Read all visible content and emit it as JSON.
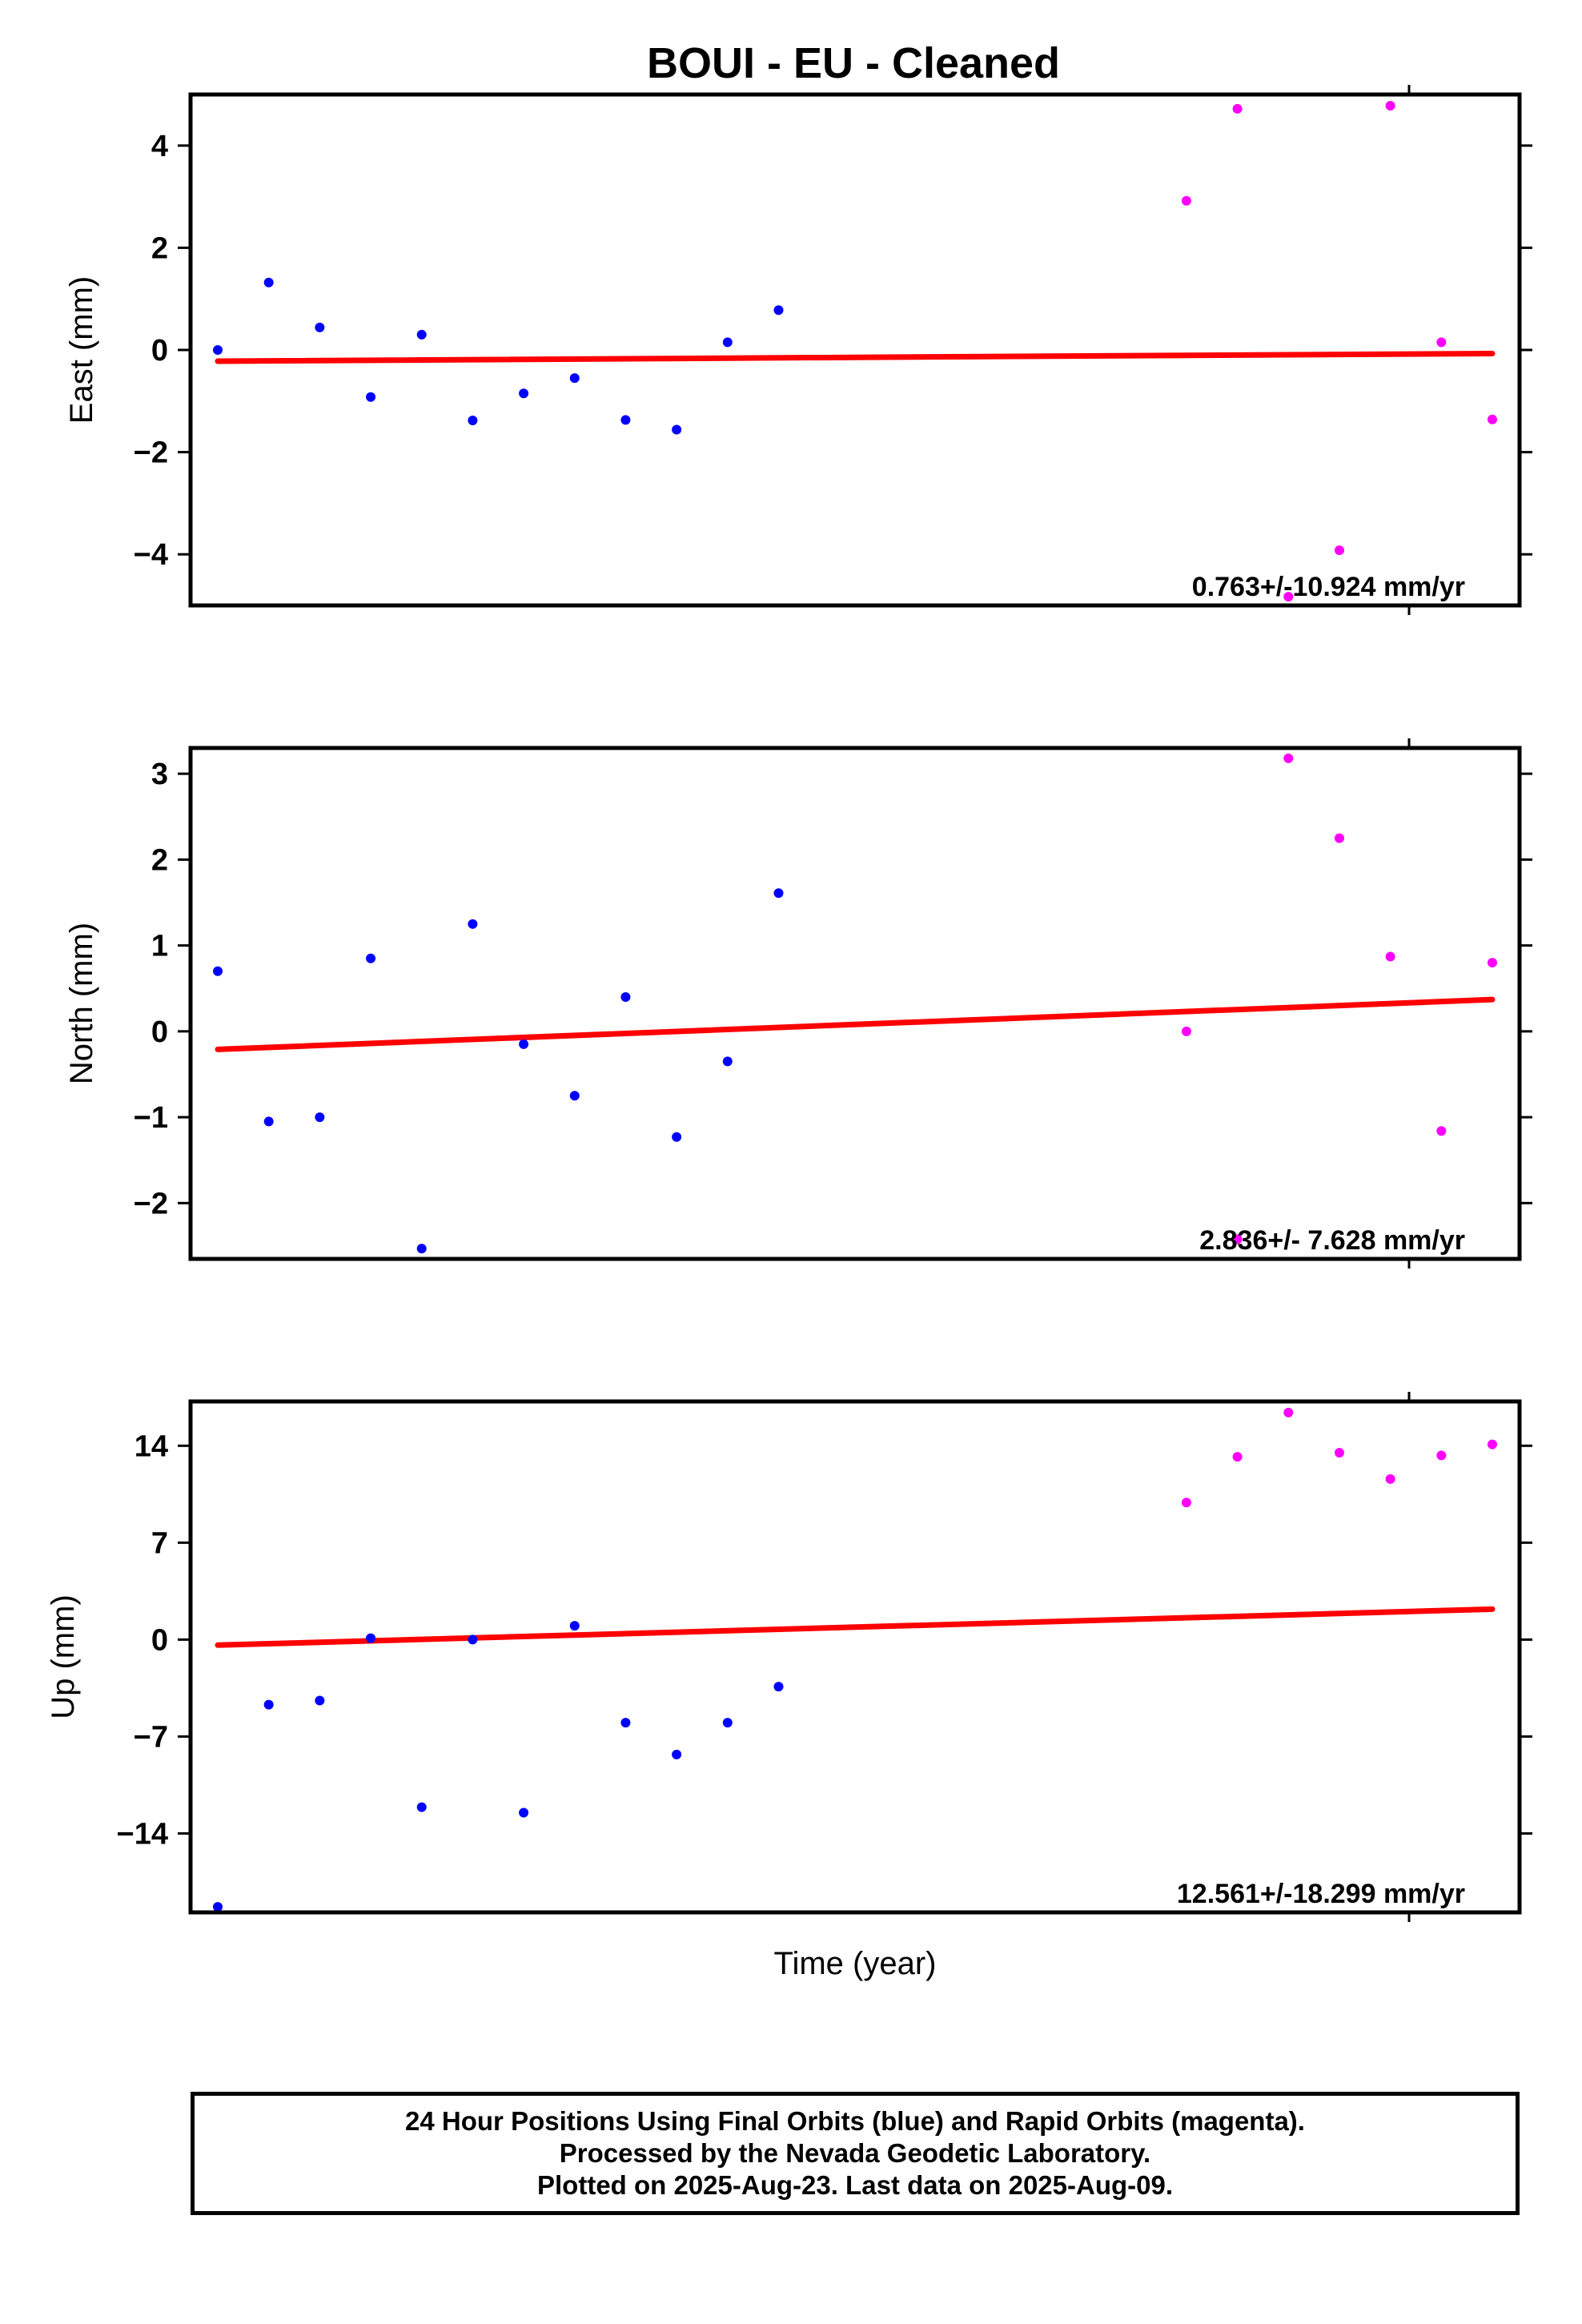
{
  "title": "BOUI  - EU - Cleaned",
  "xlabel": "Time (year)",
  "colors": {
    "final": "#0000ff",
    "rapid": "#ff00ff",
    "trend": "#ff0000",
    "frame": "#000000"
  },
  "chart_data": [
    {
      "type": "scatter",
      "ylabel": "East (mm)",
      "ylim": [
        -5.0,
        5.0
      ],
      "yticks": [
        4,
        2,
        0,
        -2,
        -4
      ],
      "ytick_labels": [
        "4",
        "2",
        "0",
        "−2",
        "−4"
      ],
      "rate_label": "0.763+/-10.924 mm/yr",
      "series": [
        {
          "name": "Final Orbits",
          "color": "#0000ff",
          "x": [
            0,
            1,
            2,
            3,
            4,
            5,
            6,
            7,
            8,
            9,
            10,
            11
          ],
          "y": [
            0.0,
            1.32,
            0.44,
            -0.92,
            0.3,
            -1.38,
            -0.85,
            -0.55,
            -1.37,
            -1.56,
            0.15,
            0.78
          ]
        },
        {
          "name": "Rapid Orbits",
          "color": "#ff00ff",
          "x": [
            19,
            20,
            21,
            22,
            23,
            24,
            25
          ],
          "y": [
            2.92,
            4.72,
            -4.83,
            -3.92,
            4.78,
            0.15,
            -1.36
          ]
        }
      ],
      "trend": {
        "x": [
          0,
          25
        ],
        "y": [
          -0.22,
          -0.07
        ]
      }
    },
    {
      "type": "scatter",
      "ylabel": "North (mm)",
      "ylim": [
        -2.65,
        3.3
      ],
      "yticks": [
        3,
        2,
        1,
        0,
        -1,
        -2
      ],
      "ytick_labels": [
        "3",
        "2",
        "1",
        "0",
        "−1",
        "−2"
      ],
      "rate_label": "2.836+/- 7.628 mm/yr",
      "series": [
        {
          "name": "Final Orbits",
          "color": "#0000ff",
          "x": [
            0,
            1,
            2,
            3,
            4,
            5,
            6,
            7,
            8,
            9,
            10,
            11
          ],
          "y": [
            0.7,
            -1.05,
            -1.0,
            0.85,
            -2.53,
            1.25,
            -0.15,
            -0.75,
            0.4,
            -1.23,
            -0.35,
            1.61
          ]
        },
        {
          "name": "Rapid Orbits",
          "color": "#ff00ff",
          "x": [
            19,
            20,
            21,
            22,
            23,
            24,
            25
          ],
          "y": [
            0.0,
            -2.42,
            3.18,
            2.25,
            0.87,
            -1.16,
            0.8
          ]
        }
      ],
      "trend": {
        "x": [
          0,
          25
        ],
        "y": [
          -0.21,
          0.37
        ]
      }
    },
    {
      "type": "scatter",
      "ylabel": "Up (mm)",
      "ylim": [
        -19.7,
        17.2
      ],
      "yticks": [
        14,
        7,
        0,
        -7,
        -14
      ],
      "ytick_labels": [
        "14",
        "7",
        "0",
        "−7",
        "−14"
      ],
      "rate_label": "12.561+/-18.299 mm/yr",
      "series": [
        {
          "name": "Final Orbits",
          "color": "#0000ff",
          "x": [
            0,
            1,
            2,
            3,
            4,
            5,
            6,
            7,
            8,
            9,
            10,
            11
          ],
          "y": [
            -19.3,
            -4.7,
            -4.4,
            0.1,
            -12.1,
            0.0,
            -12.5,
            1.0,
            -6.0,
            -8.3,
            -6.0,
            -3.4
          ]
        },
        {
          "name": "Rapid Orbits",
          "color": "#ff00ff",
          "x": [
            19,
            20,
            21,
            22,
            23,
            24,
            25
          ],
          "y": [
            9.9,
            13.2,
            16.4,
            13.5,
            11.6,
            13.3,
            14.1
          ]
        }
      ],
      "trend": {
        "x": [
          0,
          25
        ],
        "y": [
          -0.4,
          2.2
        ]
      }
    }
  ],
  "footer": {
    "line1": "24 Hour Positions Using Final Orbits (blue) and Rapid Orbits (magenta).",
    "line2": "Processed by the Nevada Geodetic Laboratory.",
    "line3": "Plotted on 2025-Aug-23. Last data on 2025-Aug-09."
  }
}
